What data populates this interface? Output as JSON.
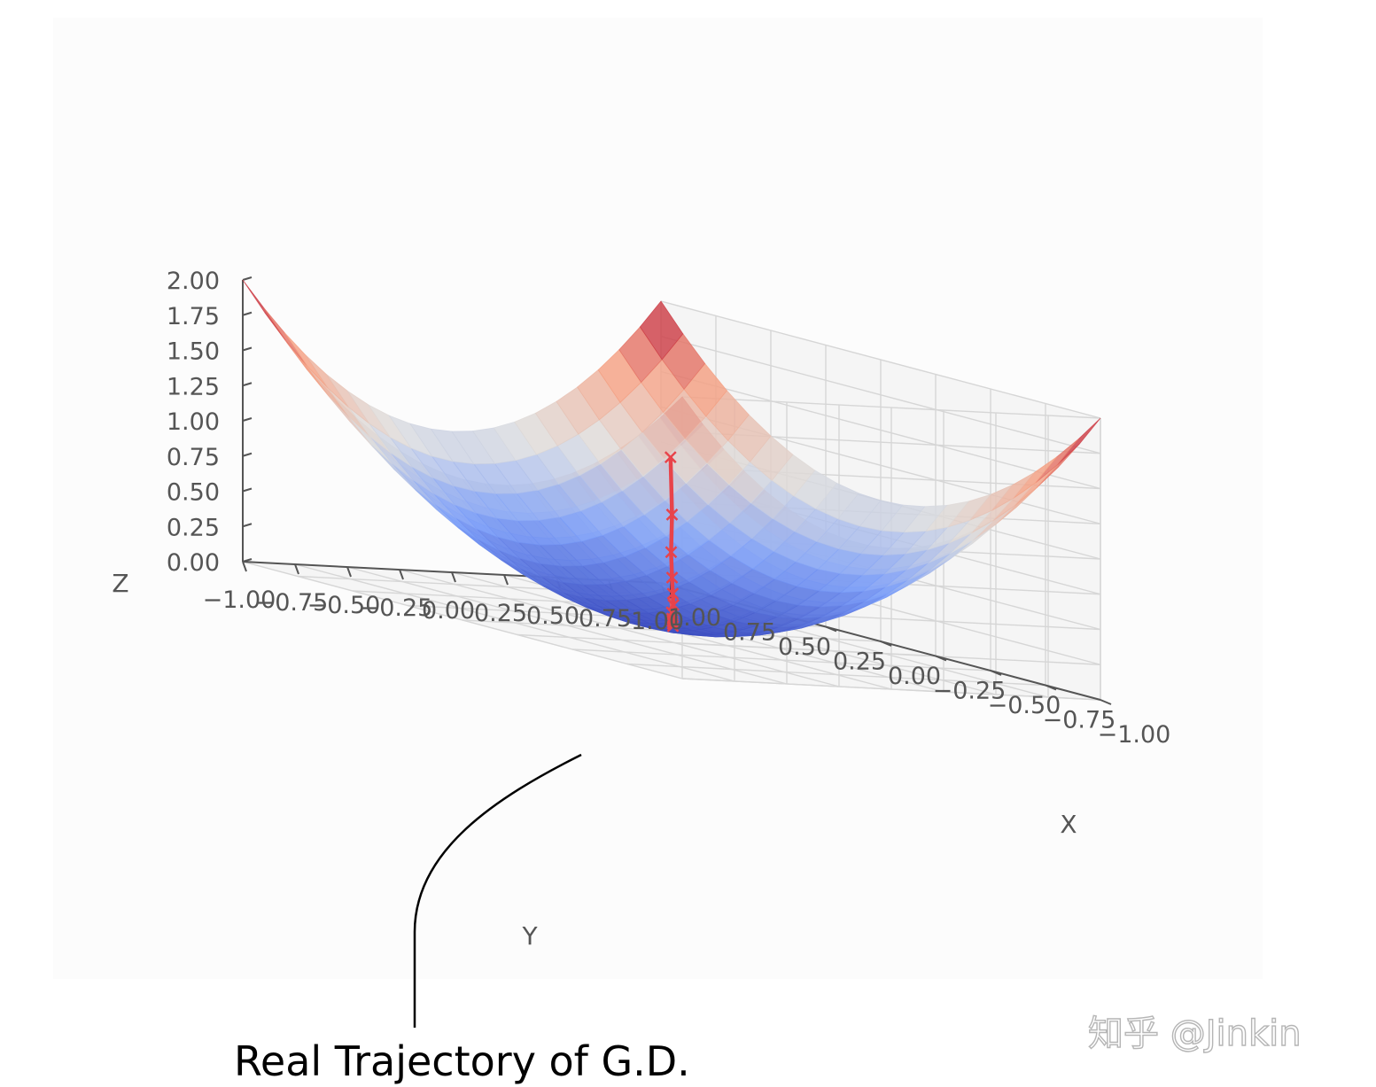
{
  "chart_data": {
    "type": "surface3d",
    "axes": {
      "x": {
        "label": "X",
        "ticks": [
          "1.00",
          "0.75",
          "0.50",
          "0.25",
          "0.00",
          "−0.25",
          "−0.50",
          "−0.75",
          "−1.00"
        ],
        "range": [
          -1,
          1
        ]
      },
      "y": {
        "label": "Y",
        "ticks": [
          "1.00",
          "0.75",
          "0.50",
          "0.25",
          "0.00",
          "−0.25",
          "−0.50",
          "−0.75",
          "−1.00"
        ],
        "range": [
          -1,
          1
        ]
      },
      "z": {
        "label": "Z",
        "ticks": [
          "2.00",
          "1.75",
          "1.50",
          "1.25",
          "1.00",
          "0.75",
          "0.50",
          "0.25",
          "0.00"
        ],
        "range": [
          0,
          2
        ]
      }
    },
    "surface": {
      "function": "z = x^2 + y^2",
      "colormap": "coolwarm"
    },
    "trajectory": {
      "color": "#e8434a",
      "marker": "x",
      "points": [
        {
          "x": 0.72,
          "y": 0.69,
          "z": 1.0
        },
        {
          "x": 0.58,
          "y": 0.55,
          "z": 0.64
        },
        {
          "x": 0.46,
          "y": 0.44,
          "z": 0.41
        },
        {
          "x": 0.37,
          "y": 0.35,
          "z": 0.26
        },
        {
          "x": 0.3,
          "y": 0.28,
          "z": 0.17
        },
        {
          "x": 0.24,
          "y": 0.22,
          "z": 0.11
        },
        {
          "x": 0.19,
          "y": 0.18,
          "z": 0.07
        },
        {
          "x": 0.15,
          "y": 0.14,
          "z": 0.04
        },
        {
          "x": 0.12,
          "y": 0.11,
          "z": 0.03
        },
        {
          "x": 0.1,
          "y": 0.09,
          "z": 0.02
        },
        {
          "x": 0.08,
          "y": 0.07,
          "z": 0.01
        }
      ]
    },
    "grid": true
  },
  "annotation": {
    "text": "Real Trajectory of G.D."
  },
  "watermark": {
    "text": "知乎 @Jinkin"
  }
}
